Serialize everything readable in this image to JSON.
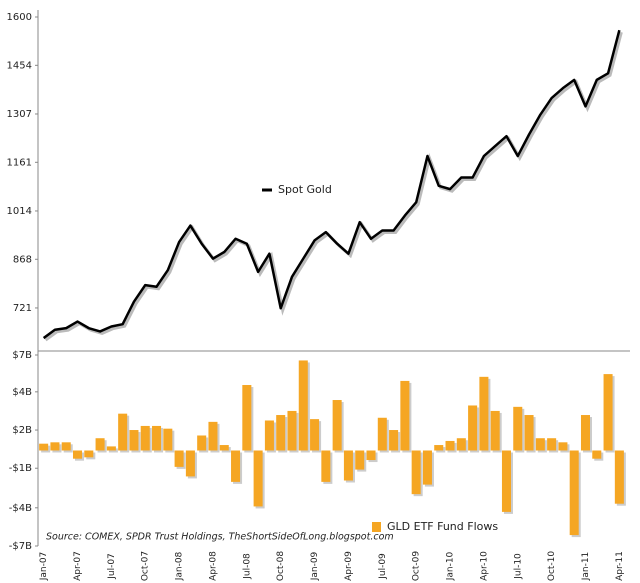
{
  "chart_data": [
    {
      "type": "line",
      "series": [
        {
          "name": "Spot Gold",
          "color": "#000000",
          "values": [
            630,
            655,
            660,
            680,
            660,
            650,
            665,
            672,
            740,
            790,
            785,
            835,
            920,
            970,
            915,
            870,
            890,
            930,
            915,
            830,
            885,
            720,
            815,
            870,
            925,
            950,
            915,
            885,
            980,
            930,
            955,
            955,
            1000,
            1040,
            1180,
            1090,
            1080,
            1115,
            1115,
            1180,
            1210,
            1240,
            1180,
            1245,
            1305,
            1355,
            1385,
            1410,
            1330,
            1410,
            1430,
            1560
          ]
        }
      ],
      "ylim": [
        600,
        1600
      ],
      "yticks": [
        721,
        868,
        1014,
        1161,
        1307,
        1454,
        1600
      ]
    },
    {
      "type": "bar",
      "categories": [
        "Jan-07",
        null,
        null,
        "Apr-07",
        null,
        null,
        "Jul-07",
        null,
        null,
        "Oct-07",
        null,
        null,
        "Jan-08",
        null,
        null,
        "Apr-08",
        null,
        null,
        "Jul-08",
        null,
        null,
        "Oct-08",
        null,
        null,
        "Jan-09",
        null,
        null,
        "Apr-09",
        null,
        null,
        "Jul-09",
        null,
        null,
        "Oct-09",
        null,
        null,
        "Jan-10",
        null,
        null,
        "Apr-10",
        null,
        null,
        "Jul-10",
        null,
        null,
        "Oct-10",
        null,
        null,
        "Jan-11",
        null,
        null,
        "Apr-11"
      ],
      "series": [
        {
          "name": "GLD ETF Fund Flows",
          "color": "#f5a623",
          "values": [
            0.5,
            0.6,
            0.6,
            -0.6,
            -0.5,
            0.9,
            0.3,
            2.7,
            1.5,
            1.8,
            1.8,
            1.6,
            -1.2,
            -1.9,
            1.1,
            2.1,
            0.4,
            -2.3,
            4.8,
            -4.1,
            2.2,
            2.6,
            2.9,
            6.6,
            2.3,
            -2.3,
            3.7,
            -2.2,
            -1.4,
            -0.7,
            2.4,
            1.5,
            5.1,
            -3.2,
            -2.5,
            0.4,
            0.7,
            0.9,
            3.3,
            5.4,
            2.9,
            -4.5,
            3.2,
            2.6,
            0.9,
            0.9,
            0.6,
            -6.2,
            2.6,
            -0.6,
            5.6,
            -3.9
          ]
        }
      ],
      "ylim": [
        -7,
        7
      ],
      "yticks": [
        {
          "value": 7,
          "label": "$7B"
        },
        {
          "value": 4.3,
          "label": "$4B"
        },
        {
          "value": 1.5,
          "label": "$2B"
        },
        {
          "value": -1.3,
          "label": "-$1B"
        },
        {
          "value": -4.2,
          "label": "-$4B"
        },
        {
          "value": -7,
          "label": "-$7B"
        }
      ],
      "annotation": "Source: COMEX, SPDR Trust Holdings, TheShortSideOfLong.blogspot.com"
    }
  ]
}
